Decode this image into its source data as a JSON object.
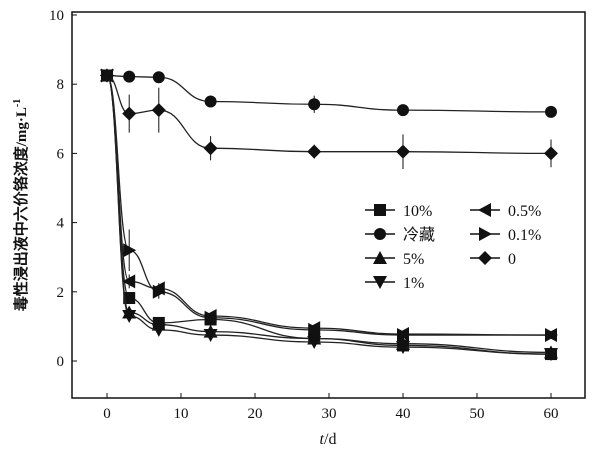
{
  "chart_data": {
    "type": "line",
    "xlabel_italic": "t",
    "xlabel_unit": "/d",
    "ylabel": "毒性浸出液中六价铬浓度/mg·L",
    "ylabel_sup": "-1",
    "xlim": [
      -5,
      65
    ],
    "ylim": [
      -1,
      10
    ],
    "xticks": [
      0,
      10,
      20,
      30,
      40,
      50,
      60
    ],
    "yticks": [
      0,
      2,
      4,
      6,
      8,
      10
    ],
    "grid": false,
    "legend_position": "center-right",
    "x": [
      0,
      3,
      7,
      14,
      28,
      40,
      60
    ],
    "series": [
      {
        "name": "10%",
        "marker": "square",
        "values": [
          8.25,
          1.82,
          1.1,
          1.2,
          0.65,
          0.45,
          0.2
        ],
        "err": [
          0.1,
          0.1,
          0.1,
          0.1,
          0.1,
          0.1,
          0.1
        ]
      },
      {
        "name": "冷藏",
        "marker": "circle",
        "values": [
          8.25,
          8.22,
          8.2,
          7.5,
          7.42,
          7.25,
          7.2
        ],
        "err": [
          0.1,
          0.1,
          0.1,
          0.1,
          0.25,
          0.15,
          0.1
        ]
      },
      {
        "name": "5%",
        "marker": "triangle-up",
        "values": [
          8.25,
          1.4,
          1.05,
          0.85,
          0.65,
          0.5,
          0.25
        ],
        "err": [
          0.1,
          0.15,
          0.1,
          0.1,
          0.1,
          0.1,
          0.1
        ]
      },
      {
        "name": "1%",
        "marker": "triangle-down",
        "values": [
          8.25,
          1.3,
          0.9,
          0.75,
          0.55,
          0.4,
          0.2
        ],
        "err": [
          0.1,
          0.15,
          0.1,
          0.1,
          0.1,
          0.1,
          0.1
        ]
      },
      {
        "name": "0.5%",
        "marker": "triangle-left",
        "values": [
          8.25,
          2.3,
          2.1,
          1.3,
          0.95,
          0.78,
          0.75
        ],
        "err": [
          0.1,
          0.2,
          0.15,
          0.1,
          0.1,
          0.1,
          0.1
        ]
      },
      {
        "name": "0.1%",
        "marker": "triangle-right",
        "values": [
          8.25,
          3.2,
          2.0,
          1.25,
          0.9,
          0.75,
          0.75
        ],
        "err": [
          0.1,
          0.6,
          0.2,
          0.1,
          0.1,
          0.1,
          0.1
        ]
      },
      {
        "name": "0",
        "marker": "diamond",
        "values": [
          8.25,
          7.15,
          7.25,
          6.15,
          6.05,
          6.05,
          6.0
        ],
        "err": [
          0.1,
          0.55,
          0.65,
          0.35,
          0.2,
          0.5,
          0.4
        ]
      }
    ]
  }
}
